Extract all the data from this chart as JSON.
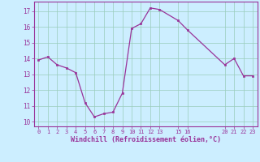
{
  "x": [
    0,
    1,
    2,
    3,
    4,
    5,
    6,
    7,
    8,
    9,
    10,
    11,
    12,
    13,
    15,
    16,
    20,
    21,
    22,
    23
  ],
  "y": [
    13.9,
    14.1,
    13.6,
    13.4,
    13.1,
    11.2,
    10.3,
    10.5,
    10.6,
    11.8,
    15.9,
    16.2,
    17.2,
    17.1,
    16.4,
    15.8,
    13.6,
    14.0,
    12.9,
    12.9
  ],
  "line_color": "#993399",
  "marker_color": "#993399",
  "bg_color": "#cceeff",
  "grid_color": "#99ccbb",
  "xlabel": "Windchill (Refroidissement éolien,°C)",
  "xlabel_color": "#993399",
  "tick_color": "#993399",
  "spine_color": "#993399",
  "xticks": [
    0,
    1,
    2,
    3,
    4,
    5,
    6,
    7,
    8,
    9,
    10,
    11,
    12,
    13,
    15,
    16,
    20,
    21,
    22,
    23
  ],
  "yticks": [
    10,
    11,
    12,
    13,
    14,
    15,
    16,
    17
  ],
  "ylim": [
    9.7,
    17.6
  ],
  "xlim": [
    -0.5,
    23.5
  ]
}
